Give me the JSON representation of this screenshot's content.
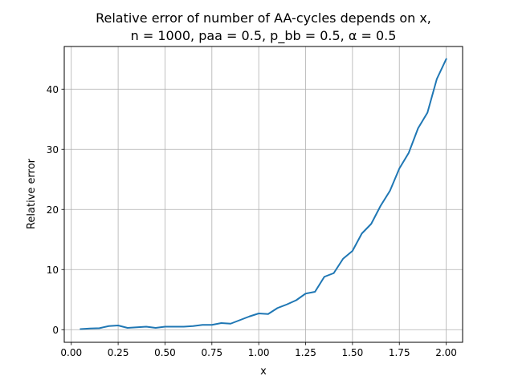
{
  "chart_data": {
    "type": "line",
    "title": "Relative error of number of AA-cycles depends on x,",
    "subtitle": "n = 1000, paa = 0.5, p_bb = 0.5, α = 0.5",
    "xlabel": "x",
    "ylabel": "Relative error",
    "xlim": [
      -0.0375,
      2.0875
    ],
    "ylim": [
      -2.1,
      47.1
    ],
    "grid": true,
    "line_color": "#1f77b4",
    "x_ticks": [
      0.0,
      0.25,
      0.5,
      0.75,
      1.0,
      1.25,
      1.5,
      1.75,
      2.0
    ],
    "x_tick_labels": [
      "0.00",
      "0.25",
      "0.50",
      "0.75",
      "1.00",
      "1.25",
      "1.50",
      "1.75",
      "2.00"
    ],
    "y_ticks": [
      0,
      10,
      20,
      30,
      40
    ],
    "y_tick_labels": [
      "0",
      "10",
      "20",
      "30",
      "40"
    ],
    "series": [
      {
        "x": [
          0.05,
          0.1,
          0.15,
          0.2,
          0.25,
          0.3,
          0.35,
          0.4,
          0.45,
          0.5,
          0.55,
          0.6,
          0.65,
          0.7,
          0.75,
          0.8,
          0.85,
          0.9,
          0.95,
          1.0,
          1.05,
          1.1,
          1.15,
          1.2,
          1.25,
          1.3,
          1.35,
          1.4,
          1.45,
          1.5,
          1.55,
          1.6,
          1.65,
          1.7,
          1.75,
          1.8,
          1.85,
          1.9,
          1.95,
          2.0
        ],
        "values": [
          0.1,
          0.2,
          0.25,
          0.6,
          0.7,
          0.3,
          0.4,
          0.5,
          0.3,
          0.5,
          0.5,
          0.5,
          0.6,
          0.8,
          0.8,
          1.1,
          1.0,
          1.6,
          2.2,
          2.7,
          2.6,
          3.6,
          4.2,
          4.9,
          6.0,
          6.3,
          8.8,
          9.4,
          11.8,
          13.1,
          16.0,
          17.6,
          20.6,
          23.1,
          26.8,
          29.4,
          33.5,
          36.1,
          41.7,
          45.0
        ]
      }
    ]
  }
}
